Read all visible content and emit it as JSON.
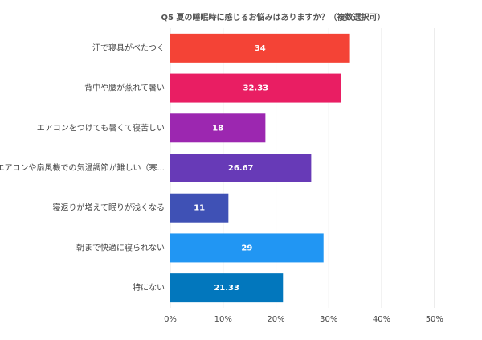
{
  "chart_data": {
    "type": "hbar",
    "title": "Q5 夏の睡眠時に感じるお悩みはありますか？（複数選択可）",
    "categories": [
      "汗で寝具がべたつく",
      "背中や腰が蒸れて暑い",
      "エアコンをつけても暑くて寝苦しい",
      "エアコンや扇風機での気温調節が難しい（寒...",
      "寝返りが増えて眠りが浅くなる",
      "朝まで快適に寝られない",
      "特にない"
    ],
    "values": [
      34,
      32.33,
      18,
      26.67,
      11,
      29,
      21.33
    ],
    "colors": [
      "#f44336",
      "#e91e63",
      "#9c27b0",
      "#673ab7",
      "#3f51b5",
      "#2196f3",
      "#0277bd"
    ],
    "xlim": [
      0,
      59
    ],
    "xticks": [
      {
        "value": 0,
        "label": "0%"
      },
      {
        "value": 10,
        "label": "10%"
      },
      {
        "value": 20,
        "label": "20%"
      },
      {
        "value": 30,
        "label": "30%"
      },
      {
        "value": 40,
        "label": "40%"
      },
      {
        "value": 50,
        "label": "50%"
      }
    ],
    "grid": true
  }
}
